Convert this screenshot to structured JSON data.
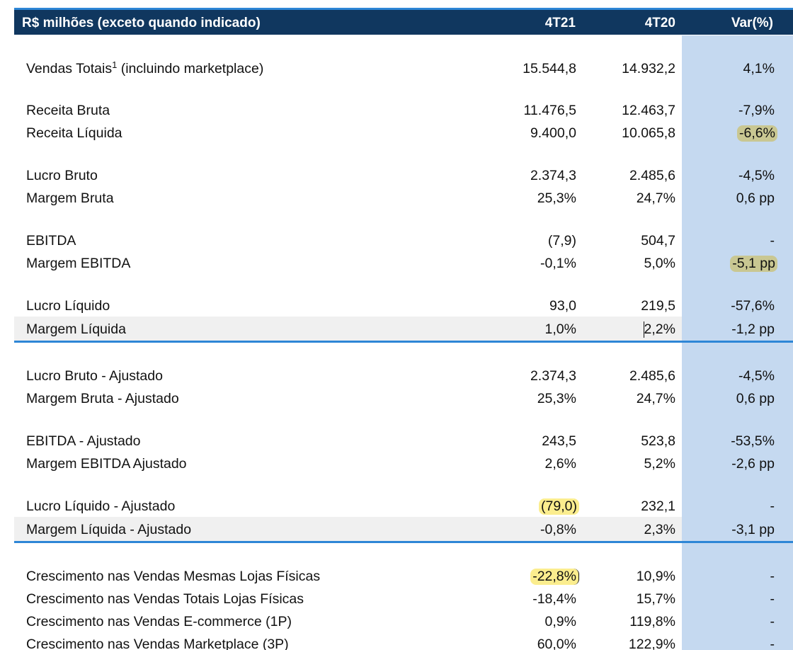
{
  "header": {
    "label": "R$ milhões (exceto quando indicado)",
    "col1": "4T21",
    "col2": "4T20",
    "col3": "Var(%)"
  },
  "rows": [
    {
      "label": "Vendas Totais",
      "sup": "1",
      "label_suffix": " (incluindo marketplace)",
      "c1": "15.544,8",
      "c2": "14.932,2",
      "c3": "4,1%"
    },
    {
      "label": "Receita Bruta",
      "c1": "11.476,5",
      "c2": "12.463,7",
      "c3": "-7,9%"
    },
    {
      "label": "Receita Líquida",
      "c1": "9.400,0",
      "c2": "10.065,8",
      "c3": "-6,6%"
    },
    {
      "label": "Lucro Bruto",
      "c1": "2.374,3",
      "c2": "2.485,6",
      "c3": "-4,5%"
    },
    {
      "label": "Margem Bruta",
      "c1": "25,3%",
      "c2": "24,7%",
      "c3": "0,6 pp"
    },
    {
      "label": "EBITDA",
      "c1": "(7,9)",
      "c2": "504,7",
      "c3": "-"
    },
    {
      "label": "Margem EBITDA",
      "c1": "-0,1%",
      "c2": "5,0%",
      "c3": "-5,1 pp"
    },
    {
      "label": "Lucro Líquido",
      "c1": "93,0",
      "c2": "219,5",
      "c3": "-57,6%"
    },
    {
      "label": "Margem Líquida",
      "c1": "1,0%",
      "c2": "2,2%",
      "c3": "-1,2 pp"
    },
    {
      "label": "Lucro Bruto - Ajustado",
      "c1": "2.374,3",
      "c2": "2.485,6",
      "c3": "-4,5%"
    },
    {
      "label": "Margem Bruta - Ajustado",
      "c1": "25,3%",
      "c2": "24,7%",
      "c3": "0,6 pp"
    },
    {
      "label": "EBITDA - Ajustado",
      "c1": "243,5",
      "c2": "523,8",
      "c3": "-53,5%"
    },
    {
      "label": "Margem EBITDA Ajustado",
      "c1": "2,6%",
      "c2": "5,2%",
      "c3": "-2,6 pp"
    },
    {
      "label": "Lucro Líquido - Ajustado",
      "c1": "(79,0)",
      "c2": "232,1",
      "c3": "-"
    },
    {
      "label": "Margem Líquida - Ajustado",
      "c1": "-0,8%",
      "c2": "2,3%",
      "c3": "-3,1 pp"
    },
    {
      "label": "Crescimento nas Vendas Mesmas Lojas Físicas",
      "c1": "-22,8%",
      "c2": "10,9%",
      "c3": "-"
    },
    {
      "label": "Crescimento nas Vendas Totais Lojas Físicas",
      "c1": "-18,4%",
      "c2": "15,7%",
      "c3": "-"
    },
    {
      "label": "Crescimento nas Vendas E-commerce (1P)",
      "c1": "0,9%",
      "c2": "119,8%",
      "c3": "-"
    },
    {
      "label": "Crescimento nas Vendas Marketplace (3P)",
      "c1": "60,0%",
      "c2": "122,9%",
      "c3": "-"
    }
  ],
  "colors": {
    "header_bg": "#10375f",
    "accent_line": "#2e86d6",
    "var_column_bg": "#c5d9f0",
    "highlight_olive": "#c9c792",
    "highlight_yellow": "#fbed8e"
  }
}
